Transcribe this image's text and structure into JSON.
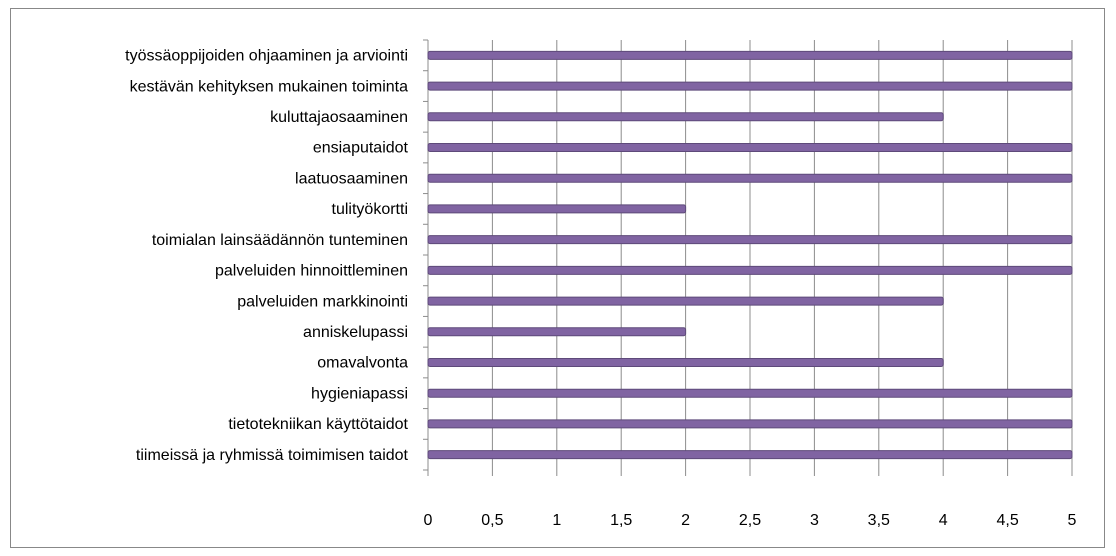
{
  "chart_data": {
    "type": "bar",
    "orientation": "horizontal",
    "categories": [
      "työssäoppijoiden ohjaaminen ja arviointi",
      "kestävän kehityksen mukainen toiminta",
      "kuluttajaosaaminen",
      "ensiaputaidot",
      "laatuosaaminen",
      "tulityökortti",
      "toimialan lainsäädännön tunteminen",
      "palveluiden hinnoittleminen",
      "palveluiden markkinointi",
      "anniskelupassi",
      "omavalvonta",
      "hygieniapassi",
      "tietotekniikan käyttötaidot",
      "tiimeissä ja ryhmissä toimimisen taidot"
    ],
    "values": [
      5,
      5,
      4,
      5,
      5,
      2,
      5,
      5,
      4,
      2,
      4,
      5,
      5,
      5
    ],
    "color": "#8064a2",
    "xlim": [
      0,
      5
    ],
    "xticks": [
      0,
      {
        "value": 0.5,
        "label": "0,5"
      },
      1,
      {
        "value": 1.5,
        "label": "1,5"
      },
      2,
      {
        "value": 2.5,
        "label": "2,5"
      },
      3,
      {
        "value": 3.5,
        "label": "3,5"
      },
      4,
      {
        "value": 4.5,
        "label": "4,5"
      },
      5
    ],
    "grid": true
  }
}
